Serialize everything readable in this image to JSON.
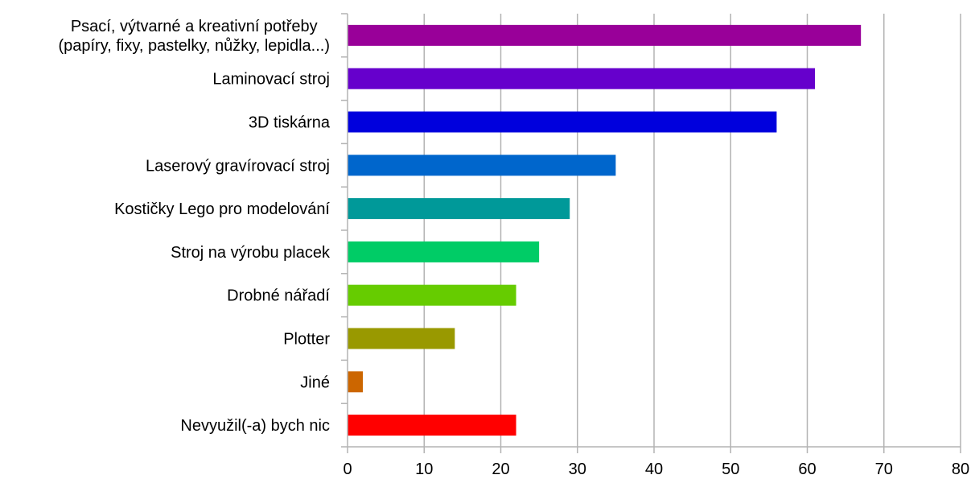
{
  "chart_data": {
    "type": "bar",
    "orientation": "horizontal",
    "categories": [
      [
        "Psací, výtvarné a kreativní potřeby",
        "(papíry, fixy, pastelky, nůžky, lepidla...)"
      ],
      [
        "Laminovací stroj"
      ],
      [
        "3D tiskárna"
      ],
      [
        "Laserový gravírovací stroj"
      ],
      [
        "Kostičky Lego pro modelování"
      ],
      [
        "Stroj na výrobu placek"
      ],
      [
        "Drobné nářadí"
      ],
      [
        "Plotter"
      ],
      [
        "Jiné"
      ],
      [
        "Nevyužil(-a) bych nic"
      ]
    ],
    "values": [
      67,
      61,
      56,
      35,
      29,
      25,
      22,
      14,
      2,
      22
    ],
    "colors": [
      "#990099",
      "#6600cc",
      "#0000dd",
      "#0066cc",
      "#009999",
      "#00cc66",
      "#66cc00",
      "#999900",
      "#cc6600",
      "#ff0000"
    ],
    "xlim": [
      0,
      80
    ],
    "xticks": [
      0,
      10,
      20,
      30,
      40,
      50,
      60,
      70,
      80
    ],
    "grid": true,
    "legend": "none"
  }
}
